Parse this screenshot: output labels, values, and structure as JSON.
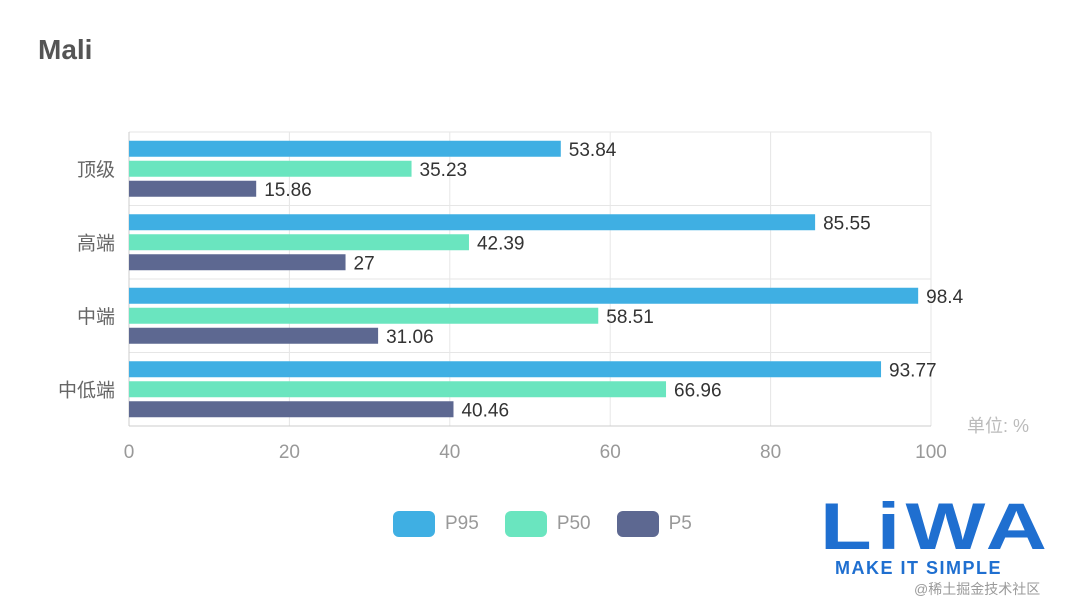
{
  "title": "Mali",
  "unit_label": "单位: %",
  "logo": {
    "wordmark": "LiWA",
    "tagline": "MAKE IT SIMPLE"
  },
  "watermark": "@稀土掘金技术社区",
  "colors": {
    "P95": "#3fafe3",
    "P50": "#6ae5bf",
    "P5": "#5d6891"
  },
  "chart_data": {
    "type": "bar",
    "orientation": "horizontal",
    "title": "Mali",
    "categories": [
      "顶级",
      "高端",
      "中端",
      "中低端"
    ],
    "series": [
      {
        "name": "P95",
        "values": [
          53.84,
          85.55,
          98.4,
          93.77
        ]
      },
      {
        "name": "P50",
        "values": [
          35.23,
          42.39,
          58.51,
          66.96
        ]
      },
      {
        "name": "P5",
        "values": [
          15.86,
          27,
          31.06,
          40.46
        ]
      }
    ],
    "xlim": [
      0,
      100
    ],
    "x_ticks": [
      "0",
      "20",
      "40",
      "60",
      "80",
      "100"
    ],
    "xlabel": "单位: %",
    "ylabel": "",
    "grid": true,
    "legend": "bottom-center"
  }
}
